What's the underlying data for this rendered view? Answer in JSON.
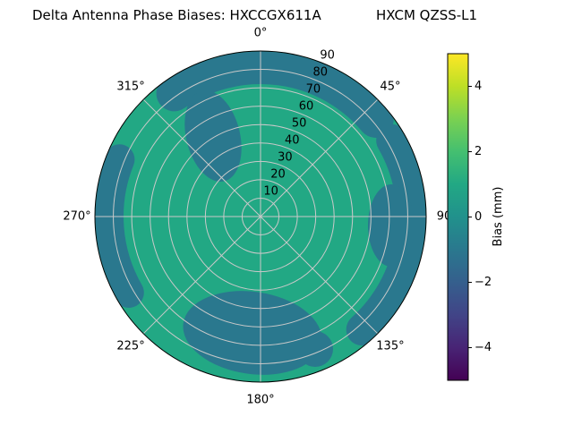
{
  "title": {
    "left": "Delta Antenna Phase Biases: HXCCGX611A",
    "right": "HXCM QZSS-L1"
  },
  "chart_data": {
    "type": "polar_contour",
    "title": "Delta Antenna Phase Biases: HXCCGX611A      HXCM QZSS-L1",
    "angular_ticks": [
      {
        "value": 0,
        "label": "0°"
      },
      {
        "value": 45,
        "label": "45°"
      },
      {
        "value": 90,
        "label": "90"
      },
      {
        "value": 135,
        "label": "135°"
      },
      {
        "value": 180,
        "label": "180°"
      },
      {
        "value": 225,
        "label": "225°"
      },
      {
        "value": 270,
        "label": "270°"
      },
      {
        "value": 315,
        "label": "315°"
      }
    ],
    "radial_ticks": [
      {
        "value": 10,
        "label": "10"
      },
      {
        "value": 20,
        "label": "20"
      },
      {
        "value": 30,
        "label": "30"
      },
      {
        "value": 40,
        "label": "40"
      },
      {
        "value": 50,
        "label": "50"
      },
      {
        "value": 60,
        "label": "60"
      },
      {
        "value": 70,
        "label": "70"
      },
      {
        "value": 80,
        "label": "80"
      },
      {
        "value": 90,
        "label": "90"
      }
    ],
    "radial_label_angle": 22.5,
    "radial_range": [
      0,
      90
    ],
    "grid": true,
    "colorbar": {
      "label": "Bias (mm)",
      "min": -5,
      "max": 5,
      "colormap": "viridis",
      "ticks": [
        {
          "value": -4,
          "label": "−4"
        },
        {
          "value": -2,
          "label": "−2"
        },
        {
          "value": 0,
          "label": "0"
        },
        {
          "value": 2,
          "label": "2"
        },
        {
          "value": 4,
          "label": "4"
        }
      ]
    },
    "colors": {
      "base": "#22a884",
      "patch": "#2a788e"
    },
    "summary": {
      "observed_bias_range_mm": [
        -1.5,
        1.5
      ],
      "background_bias_mm": 1.0,
      "patch_bias_mm": -1.0,
      "patch_regions": [
        {
          "azimuth_deg": [
            325,
            50
          ],
          "radial": [
            70,
            90
          ],
          "bias_mm": -1
        },
        {
          "azimuth_deg": [
            315,
            345
          ],
          "radial": [
            30,
            75
          ],
          "bias_mm": -1
        },
        {
          "azimuth_deg": [
            240,
            292
          ],
          "radial": [
            75,
            90
          ],
          "bias_mm": -1
        },
        {
          "azimuth_deg": [
            145,
            215
          ],
          "radial": [
            40,
            88
          ],
          "bias_mm": -1
        },
        {
          "azimuth_deg": [
            60,
            138
          ],
          "radial": [
            58,
            90
          ],
          "bias_mm": -1
        }
      ]
    }
  }
}
